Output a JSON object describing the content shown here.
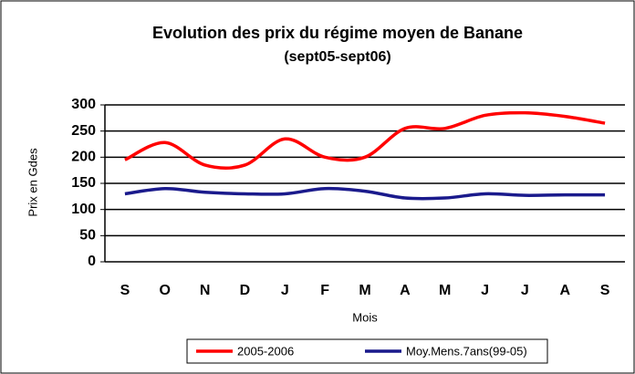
{
  "chart_data": {
    "type": "line",
    "title": "Evolution des prix du régime moyen de Banane",
    "subtitle": "(sept05-sept06)",
    "y_label": "Prix en Gdes",
    "x_label": "Mois",
    "categories": [
      "S",
      "O",
      "N",
      "D",
      "J",
      "F",
      "M",
      "A",
      "M",
      "J",
      "J",
      "A",
      "S"
    ],
    "series": [
      {
        "name": "2005-2006",
        "color": "#ff0000",
        "values": [
          195,
          228,
          185,
          185,
          235,
          200,
          200,
          255,
          255,
          280,
          285,
          278,
          265
        ]
      },
      {
        "name": "Moy.Mens.7ans(99-05)",
        "color": "#1a1a8c",
        "values": [
          130,
          140,
          133,
          130,
          130,
          140,
          135,
          122,
          122,
          130,
          127,
          128,
          128
        ]
      }
    ],
    "ylim": [
      0,
      300
    ],
    "yticks": [
      0,
      50,
      100,
      150,
      200,
      250,
      300
    ],
    "grid": true,
    "legend": "bottom"
  }
}
